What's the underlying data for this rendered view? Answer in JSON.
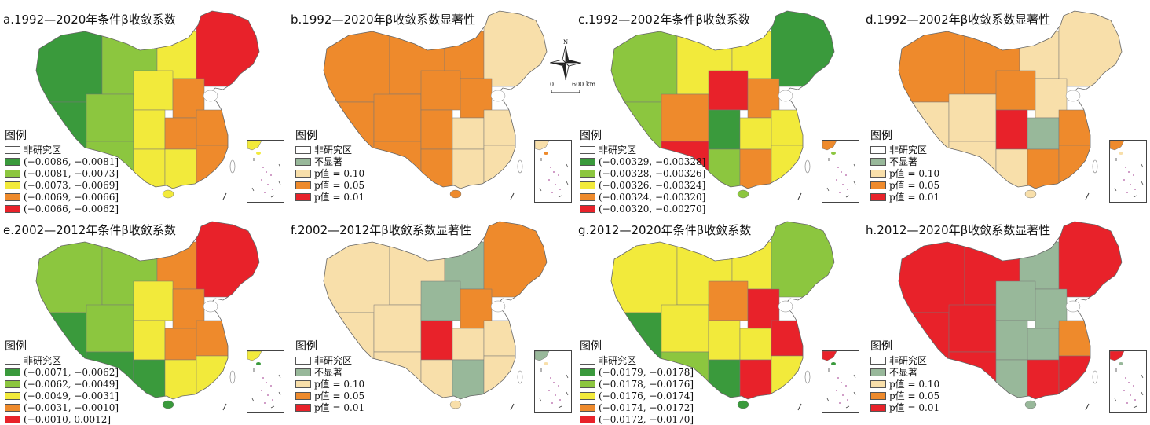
{
  "common": {
    "legend_title": "图例",
    "non_study_label": "非研究区",
    "not_significant_label": "不显著",
    "significance_items": [
      "p值 = 0.10",
      "p值 = 0.05",
      "p值 = 0.01"
    ],
    "coef_colors": [
      "#3a9a3c",
      "#8cc63f",
      "#f2ea3b",
      "#ee8a2c",
      "#e8222a"
    ],
    "sig_colors": [
      "#98b89a",
      "#f8dfaa",
      "#ee8a2c",
      "#e8222a"
    ]
  },
  "scale": {
    "north": "N",
    "zero": "0",
    "dist": "600 km"
  },
  "panels": [
    {
      "title": "a.1992—2020年条件β收敛系数",
      "type": "coef",
      "ranges": [
        "(−0.0086, −0.0081]",
        "(−0.0081, −0.0073]",
        "(−0.0073, −0.0069]",
        "(−0.0069, −0.0066]",
        "(−0.0066, −0.0062]"
      ]
    },
    {
      "title": "b.1992—2020年β收敛系数显著性",
      "type": "sig"
    },
    {
      "title": "c.1992—2002年条件β收敛系数",
      "type": "coef",
      "ranges": [
        "(−0.00329, −0.00328]",
        "(−0.00328, −0.00326]",
        "(−0.00326, −0.00324]",
        "(−0.00324, −0.00320]",
        "(−0.00320, −0.00270]"
      ]
    },
    {
      "title": "d.1992—2002年β收敛系数显著性",
      "type": "sig"
    },
    {
      "title": "e.2002—2012年条件β收敛系数",
      "type": "coef",
      "ranges": [
        "(−0.0071, −0.0062]",
        "(−0.0062, −0.0049]",
        "(−0.0049, −0.0031]",
        "(−0.0031, −0.0010]",
        "(−0.0010, 0.0012]"
      ]
    },
    {
      "title": "f.2002—2012年β收敛系数显著性",
      "type": "sig"
    },
    {
      "title": "g.2012—2020年条件β收敛系数",
      "type": "coef",
      "ranges": [
        "(−0.0179, −0.0178]",
        "(−0.0178, −0.0176]",
        "(−0.0176, −0.0174]",
        "(−0.0174, −0.0172]",
        "(−0.0172, −0.0170]"
      ]
    },
    {
      "title": "h.2012—2020年β收敛系数显著性",
      "type": "sig"
    }
  ]
}
